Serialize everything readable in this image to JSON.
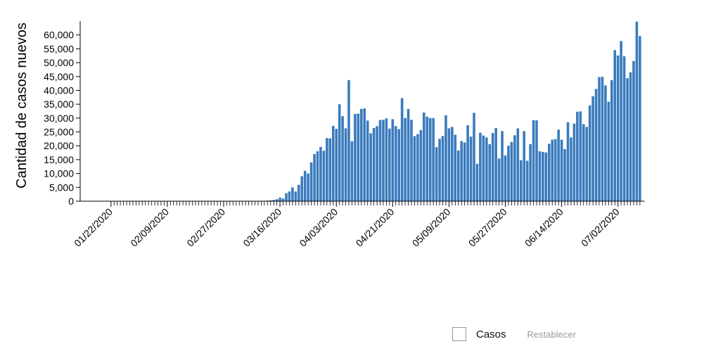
{
  "chart_data": {
    "type": "bar",
    "ylabel": "Cantidad de casos nuevos",
    "xlabel": "",
    "ylim": [
      0,
      65000
    ],
    "yticks": [
      0,
      5000,
      10000,
      15000,
      20000,
      25000,
      30000,
      35000,
      40000,
      45000,
      50000,
      55000,
      60000
    ],
    "ytick_labels": [
      "0",
      "5,000",
      "10,000",
      "15,000",
      "20,000",
      "25,000",
      "30,000",
      "35,000",
      "40,000",
      "45,000",
      "50,000",
      "55,000",
      "60,000"
    ],
    "xtick_labels": [
      "01/22/2020",
      "02/09/2020",
      "02/27/2020",
      "03/16/2020",
      "04/03/2020",
      "04/21/2020",
      "05/09/2020",
      "05/27/2020",
      "06/14/2020",
      "07/02/2020"
    ],
    "first_date": "01/22/2020",
    "bar_color": "#3a7bbd",
    "series": [
      {
        "values": [
          0,
          0,
          0,
          0,
          0,
          0,
          0,
          0,
          0,
          0,
          0,
          0,
          0,
          0,
          0,
          0,
          0,
          0,
          0,
          0,
          0,
          0,
          0,
          0,
          0,
          0,
          0,
          0,
          0,
          0,
          0,
          0,
          0,
          0,
          0,
          0,
          0,
          0,
          0,
          0,
          0,
          0,
          0,
          0,
          0,
          0,
          0,
          50,
          100,
          150,
          200,
          300,
          450,
          700,
          1300,
          950,
          2900,
          3500,
          5000,
          3500,
          5900,
          9000,
          11000,
          10000,
          14000,
          17000,
          18000,
          19600,
          18200,
          22800,
          22700,
          27200,
          26100,
          35000,
          30700,
          26300,
          43700,
          21600,
          31500,
          31600,
          33300,
          33500,
          29100,
          24500,
          26400,
          27100,
          29300,
          29400,
          29900,
          26200,
          29600,
          27100,
          26000,
          37200,
          30000,
          33300,
          29400,
          23500,
          24200,
          25700,
          32000,
          30500,
          30000,
          30000,
          19500,
          22500,
          23500,
          31000,
          26300,
          26800,
          24000,
          18300,
          21700,
          21200,
          27400,
          23300,
          31900,
          13500,
          24700,
          23700,
          23000,
          20600,
          24600,
          26400,
          15400,
          25300,
          16500,
          20000,
          21400,
          23800,
          26300,
          14800,
          25300,
          14600,
          20600,
          29200,
          29200,
          18000,
          17800,
          17600,
          20700,
          22200,
          22400,
          25800,
          22200,
          18800,
          28500,
          23000,
          28000,
          32300,
          32400,
          27800,
          26800,
          34600,
          37900,
          40500,
          44800,
          44900,
          41800,
          35900,
          43700,
          54500,
          52600,
          57800,
          52300,
          44400,
          46500,
          50600,
          64800,
          59600
        ]
      }
    ]
  },
  "legend": {
    "label": "Casos",
    "reset_label": "Restablecer"
  }
}
